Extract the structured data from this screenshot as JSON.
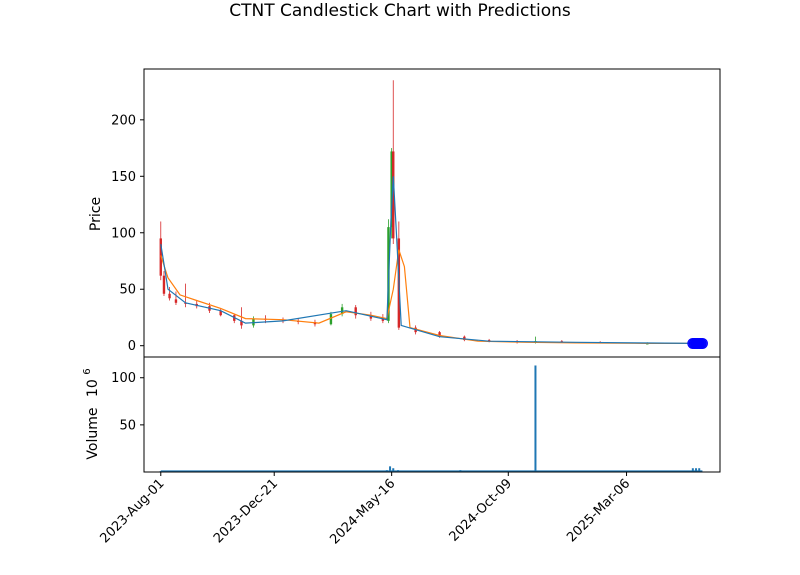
{
  "chart_data": {
    "type": "candlestick",
    "title": "CTNT Candlestick Chart with Predictions",
    "colors": {
      "up": "#2ca02c",
      "down": "#d62728",
      "pred_line": "#1f77b4",
      "ma_line": "#ff7f0e",
      "volume": "#1f77b4",
      "prediction_marker": "#0000ff"
    },
    "price_panel": {
      "ylabel": "Price",
      "ylim": [
        -10,
        245
      ],
      "yticks": [
        0,
        50,
        100,
        150,
        200
      ],
      "series": [
        {
          "points": [
            [
              "2023-08-01",
              95,
              110,
              58,
              62
            ],
            [
              "2023-08-05",
              62,
              66,
              44,
              46
            ],
            [
              "2023-08-12",
              46,
              52,
              40,
              42
            ],
            [
              "2023-08-20",
              41,
              48,
              36,
              38
            ],
            [
              "2023-09-01",
              38,
              55,
              34,
              37
            ],
            [
              "2023-09-15",
              37,
              40,
              33,
              35
            ],
            [
              "2023-10-01",
              35,
              38,
              29,
              31
            ],
            [
              "2023-10-15",
              31,
              33,
              26,
              27
            ],
            [
              "2023-11-01",
              27,
              28,
              20,
              22
            ],
            [
              "2023-11-10",
              22,
              34,
              15,
              18
            ],
            [
              "2023-11-25",
              18,
              26,
              16,
              24
            ],
            [
              "2023-12-10",
              24,
              27,
              20,
              23
            ],
            [
              "2024-01-01",
              23,
              25,
              20,
              22
            ],
            [
              "2024-01-20",
              22,
              24,
              19,
              21
            ],
            [
              "2024-02-10",
              21,
              23,
              17,
              19
            ],
            [
              "2024-03-01",
              19,
              30,
              18,
              28
            ],
            [
              "2024-03-15",
              28,
              37,
              26,
              34
            ],
            [
              "2024-04-01",
              34,
              36,
              24,
              27
            ],
            [
              "2024-04-20",
              27,
              30,
              22,
              24
            ],
            [
              "2024-05-05",
              24,
              28,
              20,
              22
            ],
            [
              "2024-05-12",
              22,
              112,
              20,
              105
            ],
            [
              "2024-05-16",
              105,
              175,
              95,
              172
            ],
            [
              "2024-05-18",
              172,
              235,
              90,
              95
            ],
            [
              "2024-05-25",
              95,
              110,
              14,
              16
            ],
            [
              "2024-06-15",
              16,
              18,
              10,
              12
            ],
            [
              "2024-07-15",
              12,
              13,
              7,
              8
            ],
            [
              "2024-08-15",
              8,
              9,
              4,
              5
            ],
            [
              "2024-09-15",
              5,
              6,
              3,
              4
            ],
            [
              "2024-10-20",
              4,
              5,
              2,
              3
            ],
            [
              "2024-11-12",
              3,
              8,
              2,
              4
            ],
            [
              "2024-12-15",
              4,
              5,
              3,
              3
            ],
            [
              "2025-02-01",
              3,
              4,
              2,
              2
            ],
            [
              "2025-04-01",
              2,
              3,
              1.5,
              2
            ],
            [
              "2025-06-01",
              2,
              2.5,
              1.5,
              2
            ]
          ]
        }
      ],
      "ma_line": [
        [
          "2023-08-01",
          80
        ],
        [
          "2023-08-10",
          60
        ],
        [
          "2023-08-25",
          45
        ],
        [
          "2023-09-15",
          40
        ],
        [
          "2023-10-15",
          33
        ],
        [
          "2023-11-15",
          24
        ],
        [
          "2024-01-01",
          23
        ],
        [
          "2024-02-15",
          20
        ],
        [
          "2024-03-20",
          30
        ],
        [
          "2024-04-20",
          27
        ],
        [
          "2024-05-10",
          24
        ],
        [
          "2024-05-18",
          50
        ],
        [
          "2024-05-25",
          85
        ],
        [
          "2024-06-01",
          70
        ],
        [
          "2024-06-08",
          16
        ],
        [
          "2024-07-15",
          9
        ],
        [
          "2024-09-01",
          4
        ],
        [
          "2024-11-01",
          3
        ],
        [
          "2025-01-01",
          2.5
        ],
        [
          "2025-04-01",
          2
        ],
        [
          "2025-06-01",
          2
        ]
      ],
      "pred_line": [
        [
          "2023-08-01",
          90
        ],
        [
          "2023-08-10",
          50
        ],
        [
          "2023-09-01",
          38
        ],
        [
          "2023-10-15",
          31
        ],
        [
          "2023-11-15",
          20
        ],
        [
          "2024-01-01",
          22
        ],
        [
          "2024-03-20",
          31
        ],
        [
          "2024-05-10",
          23
        ],
        [
          "2024-05-15",
          110
        ],
        [
          "2024-05-18",
          150
        ],
        [
          "2024-05-22",
          100
        ],
        [
          "2024-05-28",
          18
        ],
        [
          "2024-07-15",
          8
        ],
        [
          "2024-09-15",
          4
        ],
        [
          "2025-01-01",
          3
        ],
        [
          "2025-06-01",
          2
        ]
      ],
      "predictions": [
        [
          "2025-05-28",
          2
        ],
        [
          "2025-05-30",
          2
        ],
        [
          "2025-06-01",
          2
        ],
        [
          "2025-06-03",
          2
        ],
        [
          "2025-06-05",
          2
        ],
        [
          "2025-06-07",
          2
        ],
        [
          "2025-06-09",
          2
        ]
      ]
    },
    "volume_panel": {
      "ylabel": "Volume",
      "unit": "10^6",
      "ylim": [
        0,
        122
      ],
      "yticks": [
        50,
        100
      ],
      "bars": [
        [
          "2023-08-01",
          1
        ],
        [
          "2023-09-01",
          0.5
        ],
        [
          "2023-10-01",
          0.5
        ],
        [
          "2023-11-01",
          0.5
        ],
        [
          "2023-12-01",
          0.5
        ],
        [
          "2024-01-01",
          0.5
        ],
        [
          "2024-02-01",
          0.5
        ],
        [
          "2024-03-01",
          0.5
        ],
        [
          "2024-04-01",
          0.5
        ],
        [
          "2024-05-10",
          2
        ],
        [
          "2024-05-14",
          6
        ],
        [
          "2024-05-18",
          4
        ],
        [
          "2024-05-24",
          2
        ],
        [
          "2024-06-15",
          1
        ],
        [
          "2024-07-15",
          0.5
        ],
        [
          "2024-08-10",
          2
        ],
        [
          "2024-09-15",
          0.5
        ],
        [
          "2024-10-15",
          0.5
        ],
        [
          "2024-11-12",
          113
        ],
        [
          "2024-11-15",
          1
        ],
        [
          "2024-12-01",
          1.5
        ],
        [
          "2025-01-15",
          0.5
        ],
        [
          "2025-03-01",
          0.5
        ],
        [
          "2025-05-01",
          0.5
        ],
        [
          "2025-05-28",
          4
        ],
        [
          "2025-06-01",
          4
        ],
        [
          "2025-06-05",
          4
        ]
      ]
    },
    "xaxis": {
      "ticks": [
        "2023-08-01",
        "2023-12-21",
        "2024-05-16",
        "2024-10-09",
        "2025-03-06"
      ],
      "tick_labels": [
        "2023-Aug-01",
        "2023-Dec-21",
        "2024-May-16",
        "2024-Oct-09",
        "2025-Mar-06"
      ],
      "xlim": [
        "2023-07-11",
        "2025-07-01"
      ]
    }
  }
}
